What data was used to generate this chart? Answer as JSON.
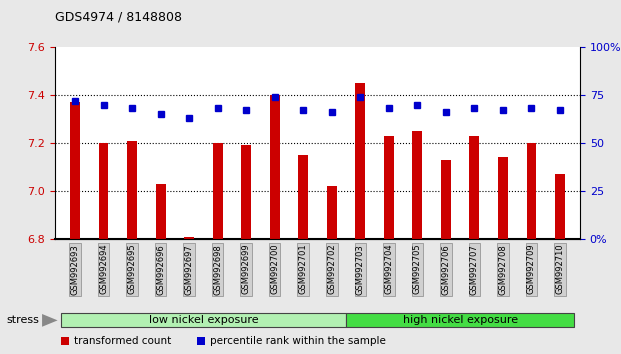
{
  "title": "GDS4974 / 8148808",
  "samples": [
    "GSM992693",
    "GSM992694",
    "GSM992695",
    "GSM992696",
    "GSM992697",
    "GSM992698",
    "GSM992699",
    "GSM992700",
    "GSM992701",
    "GSM992702",
    "GSM992703",
    "GSM992704",
    "GSM992705",
    "GSM992706",
    "GSM992707",
    "GSM992708",
    "GSM992709",
    "GSM992710"
  ],
  "transformed_count": [
    7.37,
    7.2,
    7.21,
    7.03,
    6.81,
    7.2,
    7.19,
    7.4,
    7.15,
    7.02,
    7.45,
    7.23,
    7.25,
    7.13,
    7.23,
    7.14,
    7.2,
    7.07
  ],
  "percentile_rank": [
    72,
    70,
    68,
    65,
    63,
    68,
    67,
    74,
    67,
    66,
    74,
    68,
    70,
    66,
    68,
    67,
    68,
    67
  ],
  "ylim": [
    6.8,
    7.6
  ],
  "y_ticks": [
    6.8,
    7.0,
    7.2,
    7.4,
    7.6
  ],
  "y2lim": [
    0,
    100
  ],
  "y2_ticks": [
    0,
    25,
    50,
    75,
    100
  ],
  "y2_tick_labels": [
    "0%",
    "25",
    "50",
    "75",
    "100%"
  ],
  "bar_color": "#cc0000",
  "dot_color": "#0000cc",
  "bar_bottom": 6.8,
  "group1_label": "low nickel exposure",
  "group2_label": "high nickel exposure",
  "n_group1": 10,
  "n_group2": 8,
  "group1_color": "#b2f0b2",
  "group2_color": "#44dd44",
  "stress_label": "stress",
  "legend_bar_label": "transformed count",
  "legend_dot_label": "percentile rank within the sample",
  "background_color": "#e8e8e8",
  "plot_bg_color": "#ffffff",
  "tick_label_color_left": "#cc0000",
  "tick_label_color_right": "#0000cc",
  "grid_color": "#000000",
  "figsize": [
    6.21,
    3.54
  ],
  "dpi": 100
}
